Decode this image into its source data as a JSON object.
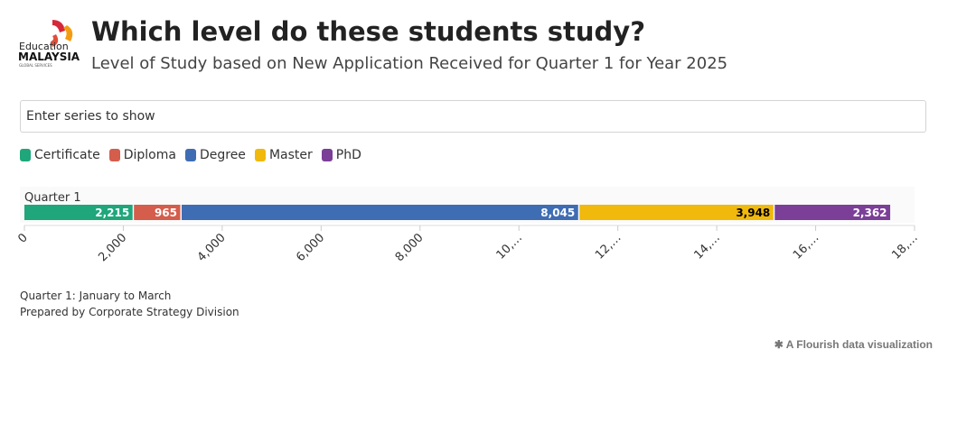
{
  "chart_data": {
    "type": "stacked_bar_horizontal",
    "logo": {
      "line1": "Education",
      "line2": "MALAYSIA",
      "line3": "GLOBAL SERVICES"
    },
    "title": "Which level do these students study?",
    "subtitle": "Level of Study based on New Application Received for Quarter 1 for Year 2025",
    "search_placeholder": "Enter series to show",
    "categories": [
      "Quarter 1"
    ],
    "series": [
      {
        "name": "Certificate",
        "color": "#1fa67a",
        "label_color": "#ffffff",
        "values": [
          2215
        ],
        "value_labels": [
          "2,215"
        ]
      },
      {
        "name": "Diploma",
        "color": "#d45d4c",
        "label_color": "#ffffff",
        "values": [
          965
        ],
        "value_labels": [
          "965"
        ]
      },
      {
        "name": "Degree",
        "color": "#3f6db3",
        "label_color": "#ffffff",
        "values": [
          8045
        ],
        "value_labels": [
          "8,045"
        ]
      },
      {
        "name": "Master",
        "color": "#f0b90b",
        "label_color": "#000000",
        "values": [
          3948
        ],
        "value_labels": [
          "3,948"
        ]
      },
      {
        "name": "PhD",
        "color": "#7b3f98",
        "label_color": "#ffffff",
        "values": [
          2362
        ],
        "value_labels": [
          "2,362"
        ]
      }
    ],
    "xlim": [
      0,
      18000
    ],
    "xticks": [
      0,
      {
        "value": 2000,
        "label": "2,000"
      },
      {
        "value": 4000,
        "label": "4,000"
      },
      {
        "value": 6000,
        "label": "6,000"
      },
      {
        "value": 8000,
        "label": "8,000"
      },
      {
        "value": 10000,
        "label": "10,…"
      },
      {
        "value": 12000,
        "label": "12,…"
      },
      {
        "value": 14000,
        "label": "14,…"
      },
      {
        "value": 16000,
        "label": "16,…"
      },
      {
        "value": 18000,
        "label": "18,…"
      }
    ],
    "notes": [
      "Quarter 1: January to March",
      "Prepared by Corporate Strategy Division"
    ],
    "credit": "A Flourish data visualization"
  }
}
